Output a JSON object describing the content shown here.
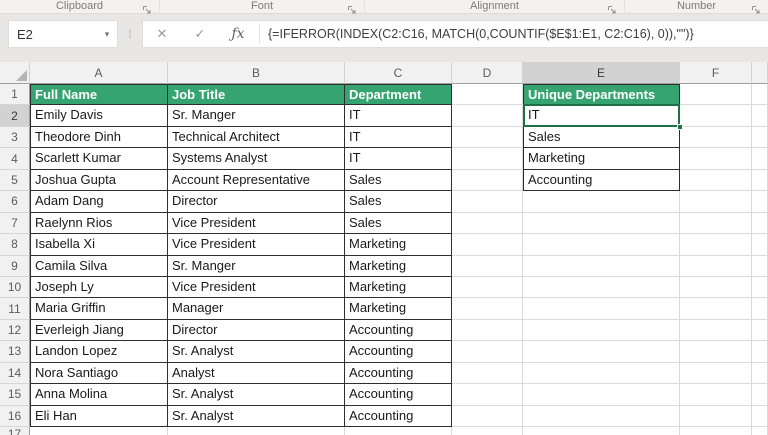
{
  "ribbon": {
    "groups": [
      {
        "label": "Clipboard"
      },
      {
        "label": "Font"
      },
      {
        "label": "Alignment"
      },
      {
        "label": "Number"
      }
    ]
  },
  "formula_bar": {
    "name_box": "E2",
    "formula": "{=IFERROR(INDEX(C2:C16, MATCH(0,COUNTIF($E$1:E1, C2:C16), 0)),\"\")}"
  },
  "icons": {
    "name_box_dropdown": "▾",
    "grip": "⁞",
    "cancel": "✕",
    "enter": "✓",
    "function": "ƒx"
  },
  "colors": {
    "accent_green": "#217346",
    "header_fill": "#35a471",
    "selection_highlight": "#d2d2d2"
  },
  "sheet": {
    "columns": [
      "A",
      "B",
      "C",
      "D",
      "E",
      "F"
    ],
    "selected_cell": "E2",
    "selected_column": "E",
    "selected_row": "2",
    "row_numbers": [
      "1",
      "2",
      "3",
      "4",
      "5",
      "6",
      "7",
      "8",
      "9",
      "10",
      "11",
      "12",
      "13",
      "14",
      "15",
      "16"
    ],
    "partial_row_number": "17",
    "table": {
      "headers": [
        "Full Name",
        "Job Title",
        "Department"
      ],
      "rows": [
        [
          "Emily Davis",
          "Sr. Manger",
          "IT"
        ],
        [
          "Theodore Dinh",
          "Technical Architect",
          "IT"
        ],
        [
          "Scarlett Kumar",
          "Systems Analyst",
          "IT"
        ],
        [
          "Joshua Gupta",
          "Account Representative",
          "Sales"
        ],
        [
          "Adam Dang",
          "Director",
          "Sales"
        ],
        [
          "Raelynn Rios",
          "Vice President",
          "Sales"
        ],
        [
          "Isabella Xi",
          "Vice President",
          "Marketing"
        ],
        [
          "Camila Silva",
          "Sr. Manger",
          "Marketing"
        ],
        [
          "Joseph Ly",
          "Vice President",
          "Marketing"
        ],
        [
          "Maria Griffin",
          "Manager",
          "Marketing"
        ],
        [
          "Everleigh Jiang",
          "Director",
          "Accounting"
        ],
        [
          "Landon Lopez",
          "Sr. Analyst",
          "Accounting"
        ],
        [
          "Nora Santiago",
          "Analyst",
          "Accounting"
        ],
        [
          "Anna Molina",
          "Sr. Analyst",
          "Accounting"
        ],
        [
          "Eli Han",
          "Sr. Analyst",
          "Accounting"
        ]
      ]
    },
    "unique": {
      "header": "Unique Departments",
      "values": [
        "IT",
        "Sales",
        "Marketing",
        "Accounting"
      ]
    }
  }
}
